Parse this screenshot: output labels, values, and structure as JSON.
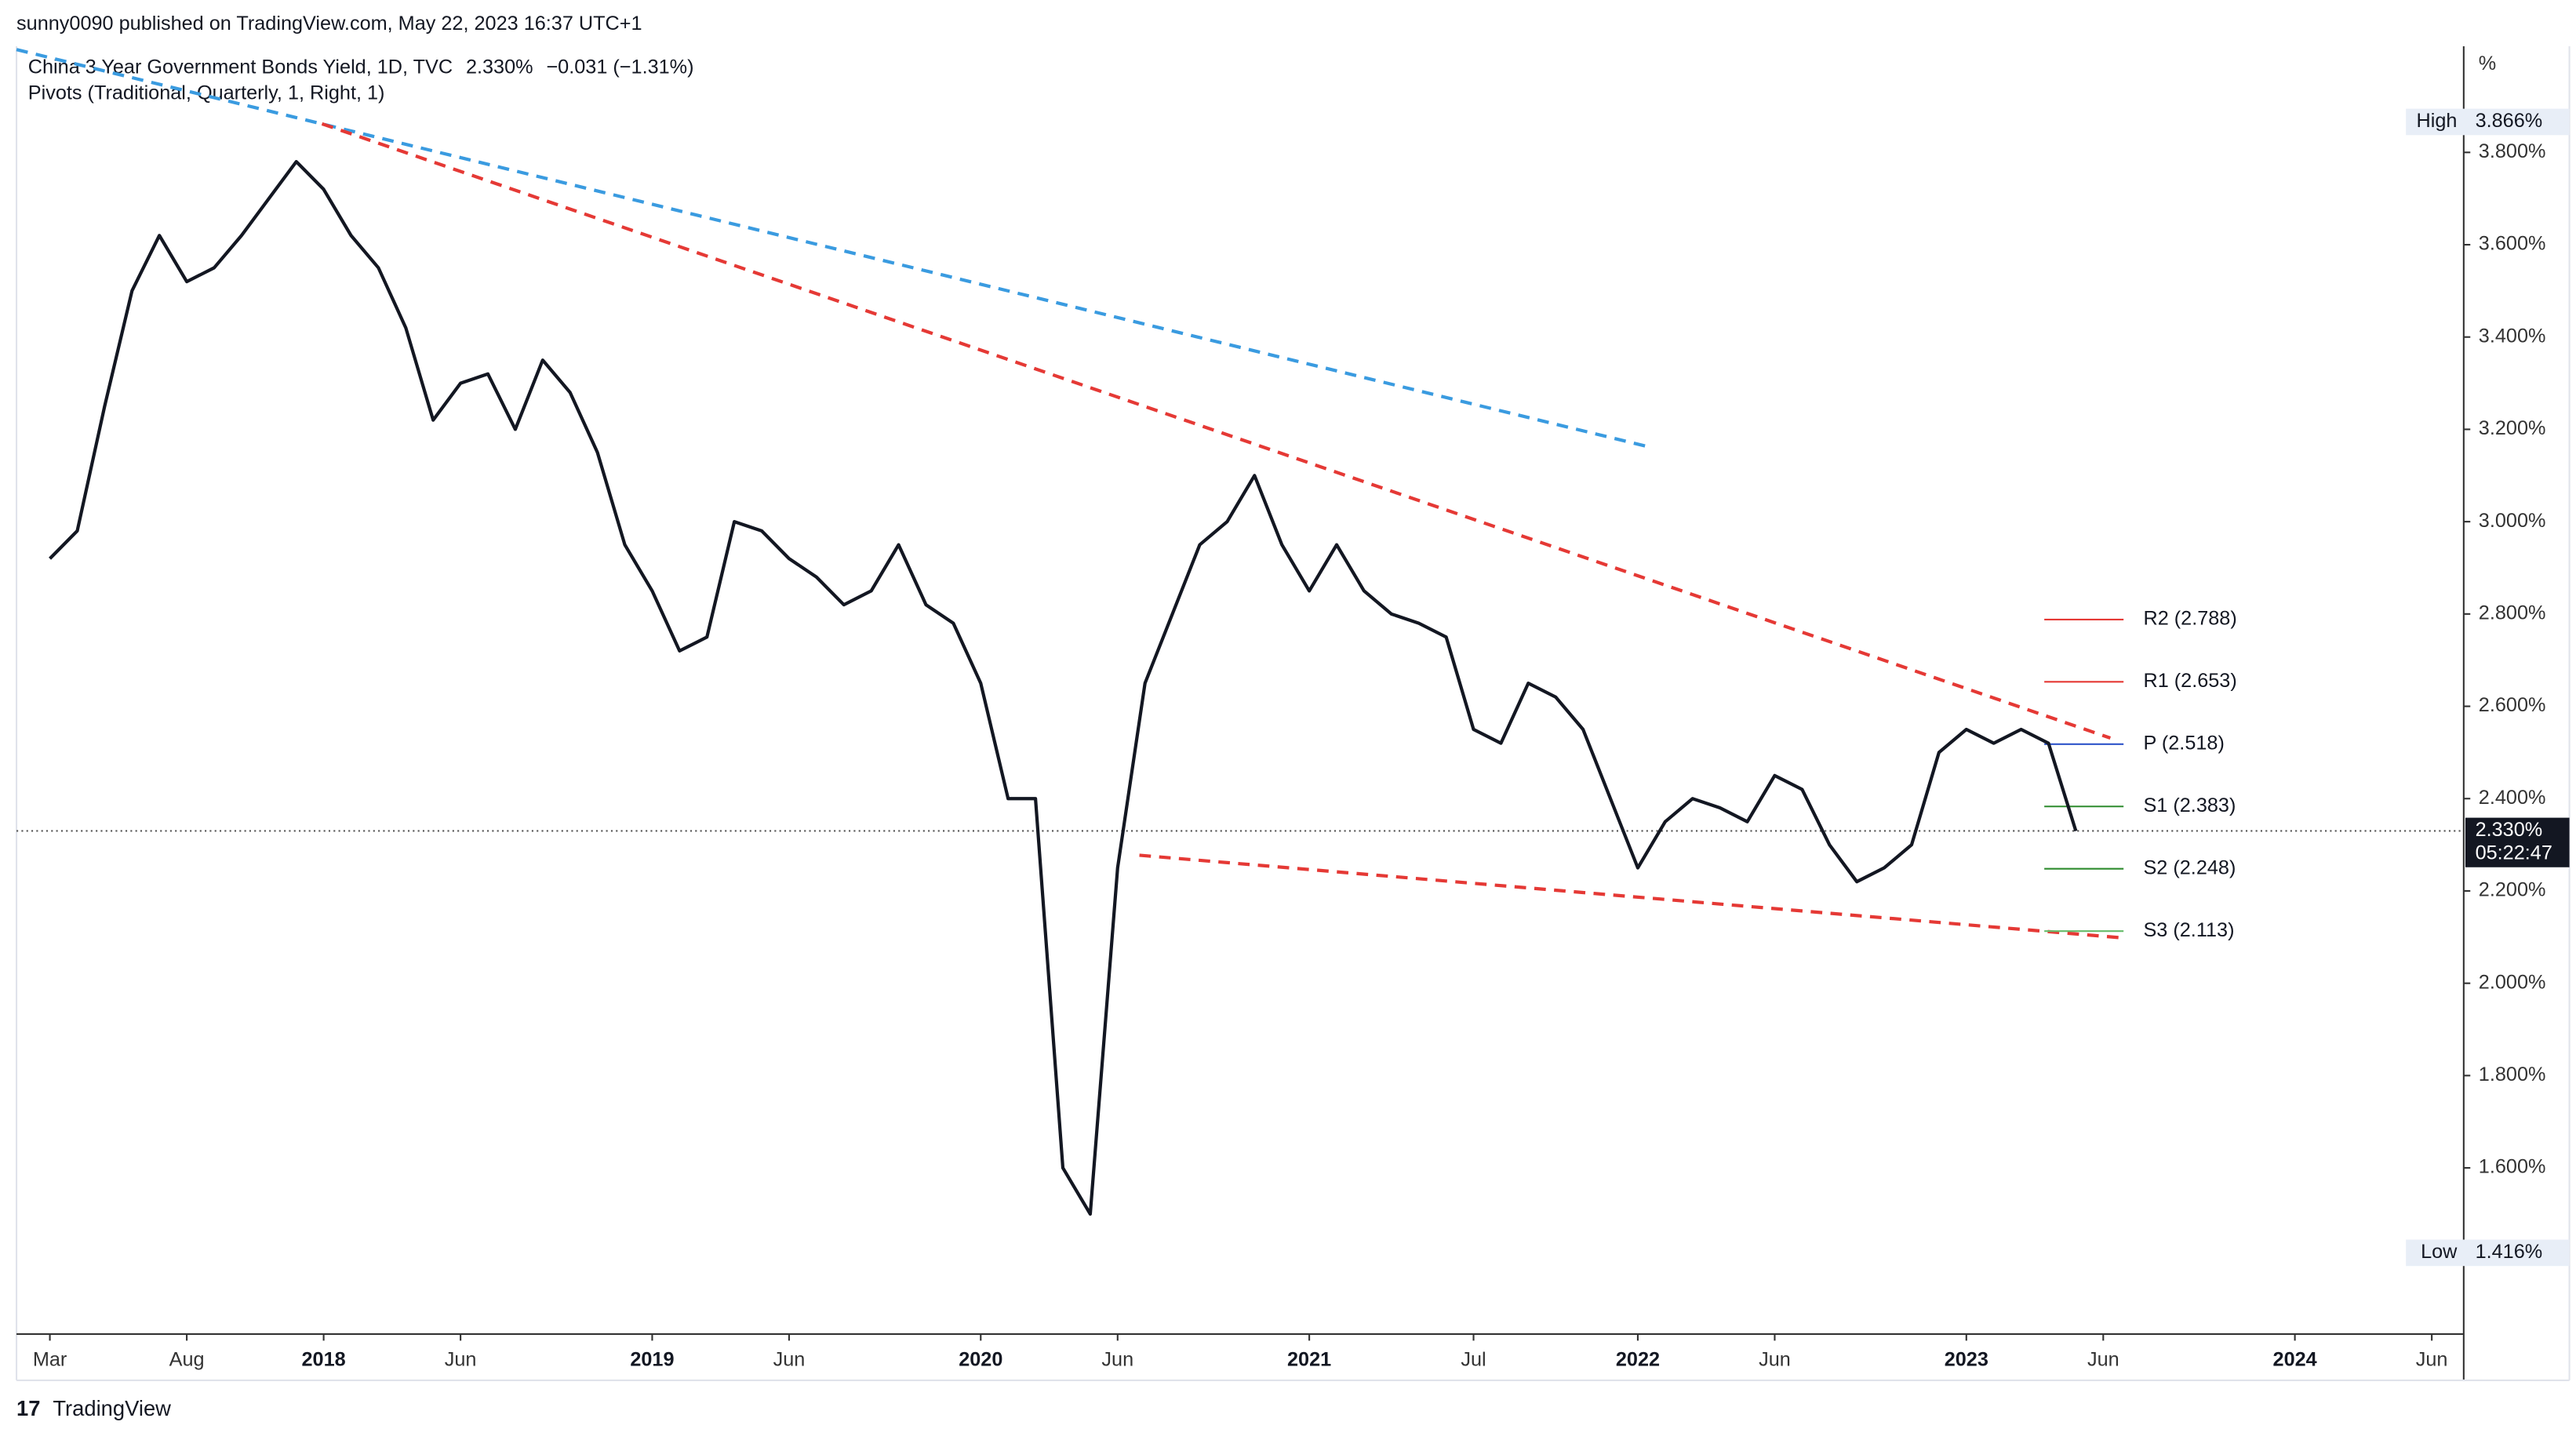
{
  "chart_data": {
    "type": "line",
    "header": "sunny0090 published on TradingView.com, May 22, 2023 16:37 UTC+1",
    "title": "China 3 Year Government Bonds Yield, 1D, TVC",
    "last": "2.330%",
    "change": "−0.031 (−1.31%)",
    "indicator": "Pivots (Traditional, Quarterly, 1, Right, 1)",
    "y_unit": "%",
    "footer": "TradingView",
    "x": [
      "2017-03",
      "2017-04",
      "2017-05",
      "2017-06",
      "2017-07",
      "2017-08",
      "2017-09",
      "2017-10",
      "2017-11",
      "2017-12",
      "2018-01",
      "2018-02",
      "2018-03",
      "2018-04",
      "2018-05",
      "2018-06",
      "2018-07",
      "2018-08",
      "2018-09",
      "2018-10",
      "2018-11",
      "2018-12",
      "2019-01",
      "2019-02",
      "2019-03",
      "2019-04",
      "2019-05",
      "2019-06",
      "2019-07",
      "2019-08",
      "2019-09",
      "2019-10",
      "2019-11",
      "2019-12",
      "2020-01",
      "2020-02",
      "2020-03",
      "2020-04",
      "2020-05",
      "2020-06",
      "2020-07",
      "2020-08",
      "2020-09",
      "2020-10",
      "2020-11",
      "2020-12",
      "2021-01",
      "2021-02",
      "2021-03",
      "2021-04",
      "2021-05",
      "2021-06",
      "2021-07",
      "2021-08",
      "2021-09",
      "2021-10",
      "2021-11",
      "2021-12",
      "2022-01",
      "2022-02",
      "2022-03",
      "2022-04",
      "2022-05",
      "2022-06",
      "2022-07",
      "2022-08",
      "2022-09",
      "2022-10",
      "2022-11",
      "2022-12",
      "2023-01",
      "2023-02",
      "2023-03",
      "2023-04",
      "2023-05"
    ],
    "series": [
      {
        "name": "China 3 Year Government Bonds Yield",
        "color": "#131722",
        "values": [
          2.92,
          2.98,
          3.25,
          3.5,
          3.62,
          3.52,
          3.55,
          3.62,
          3.7,
          3.78,
          3.72,
          3.62,
          3.55,
          3.42,
          3.22,
          3.3,
          3.32,
          3.2,
          3.35,
          3.28,
          3.15,
          2.95,
          2.85,
          2.72,
          2.75,
          3.0,
          2.98,
          2.92,
          2.88,
          2.82,
          2.85,
          2.95,
          2.82,
          2.78,
          2.65,
          2.4,
          2.4,
          1.6,
          1.5,
          2.25,
          2.65,
          2.8,
          2.95,
          3.0,
          3.1,
          2.95,
          2.85,
          2.95,
          2.85,
          2.8,
          2.78,
          2.75,
          2.55,
          2.52,
          2.65,
          2.62,
          2.55,
          2.4,
          2.25,
          2.35,
          2.4,
          2.38,
          2.35,
          2.45,
          2.42,
          2.3,
          2.22,
          2.25,
          2.3,
          2.5,
          2.55,
          2.52,
          2.55,
          2.52,
          2.33
        ]
      }
    ],
    "ylim": [
      1.24,
      4.03
    ],
    "yticks": [
      {
        "value": 1.6,
        "label": "1.600%"
      },
      {
        "value": 1.8,
        "label": "1.800%"
      },
      {
        "value": 2.0,
        "label": "2.000%"
      },
      {
        "value": 2.2,
        "label": "2.200%"
      },
      {
        "value": 2.4,
        "label": "2.400%"
      },
      {
        "value": 2.6,
        "label": "2.600%"
      },
      {
        "value": 2.8,
        "label": "2.800%"
      },
      {
        "value": 3.0,
        "label": "3.000%"
      },
      {
        "value": 3.2,
        "label": "3.200%"
      },
      {
        "value": 3.4,
        "label": "3.400%"
      },
      {
        "value": 3.6,
        "label": "3.600%"
      },
      {
        "value": 3.8,
        "label": "3.800%"
      }
    ],
    "xticks": [
      {
        "value": "2017-03",
        "label": "Mar"
      },
      {
        "value": "2017-08",
        "label": "Aug"
      },
      {
        "value": "2018-01",
        "label": "2018"
      },
      {
        "value": "2018-06",
        "label": "Jun"
      },
      {
        "value": "2019-01",
        "label": "2019"
      },
      {
        "value": "2019-06",
        "label": "Jun"
      },
      {
        "value": "2020-01",
        "label": "2020"
      },
      {
        "value": "2020-06",
        "label": "Jun"
      },
      {
        "value": "2021-01",
        "label": "2021"
      },
      {
        "value": "2021-07",
        "label": "Jul"
      },
      {
        "value": "2022-01",
        "label": "2022"
      },
      {
        "value": "2022-06",
        "label": "Jun"
      },
      {
        "value": "2023-01",
        "label": "2023"
      },
      {
        "value": "2023-06",
        "label": "Jun"
      },
      {
        "value": "2024-01",
        "label": "2024"
      },
      {
        "value": "2024-06",
        "label": "Jun"
      }
    ],
    "high": {
      "label": "High",
      "value": 3.866,
      "value_label": "3.866%"
    },
    "low": {
      "label": "Low",
      "value": 1.416,
      "value_label": "1.416%"
    },
    "current": {
      "value": 2.33,
      "value_label": "2.330%",
      "countdown": "05:22:47"
    },
    "pivots": [
      {
        "label": "R2 (2.788)",
        "value": 2.788,
        "color": "#e53935"
      },
      {
        "label": "R1 (2.653)",
        "value": 2.653,
        "color": "#e53935"
      },
      {
        "label": "P (2.518)",
        "value": 2.518,
        "color": "#2f54c9"
      },
      {
        "label": "S1 (2.383)",
        "value": 2.383,
        "color": "#2e8b2e"
      },
      {
        "label": "S2 (2.248)",
        "value": 2.248,
        "color": "#2e8b2e"
      },
      {
        "label": "S3 (2.113)",
        "value": 2.113,
        "color": "#66bb6a"
      }
    ]
  }
}
